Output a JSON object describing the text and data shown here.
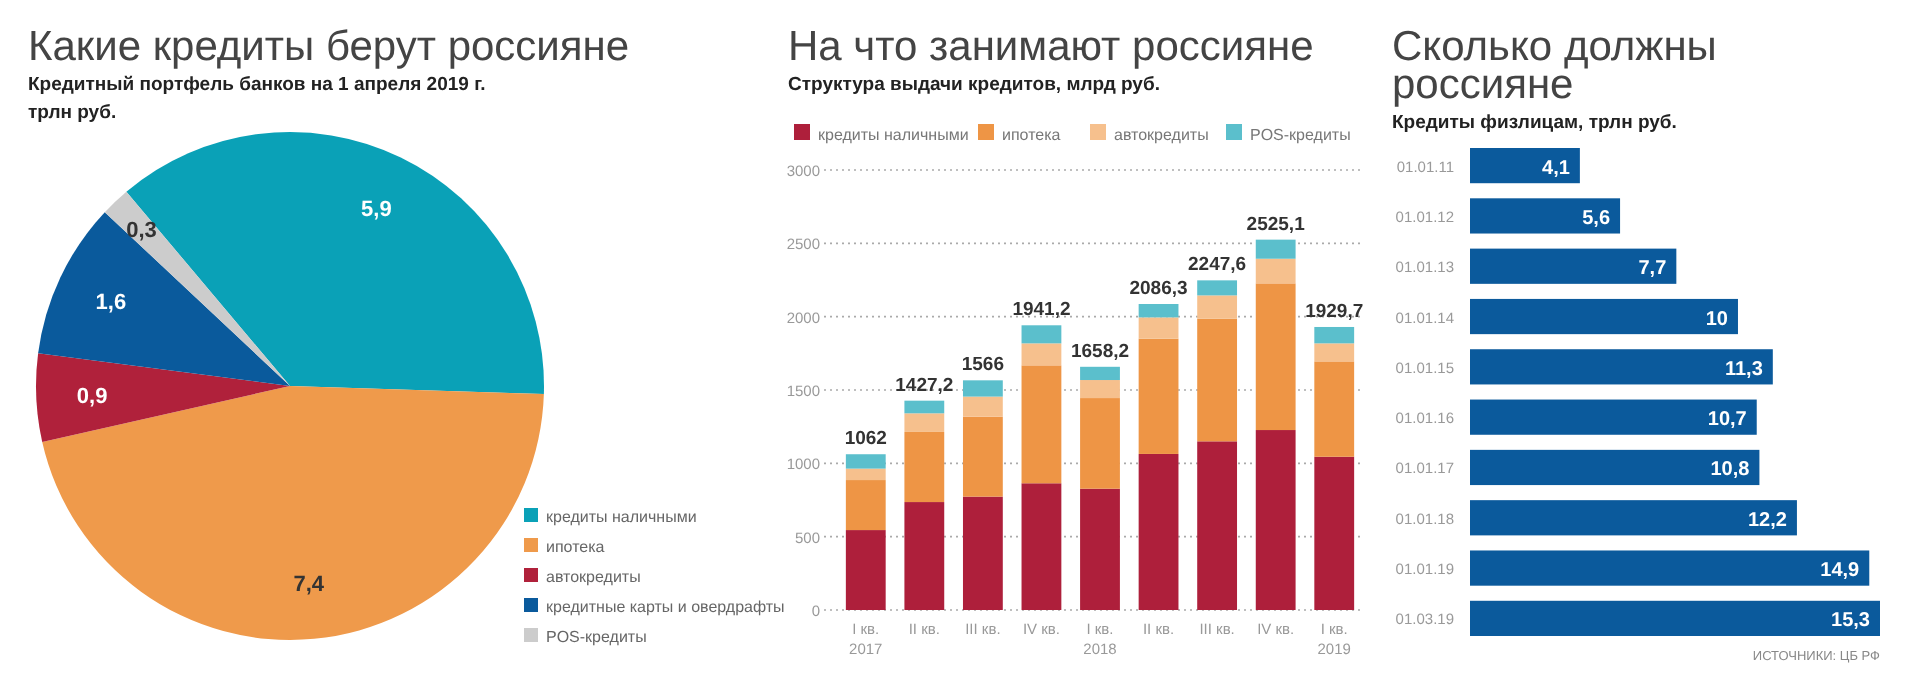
{
  "chart_data": [
    {
      "type": "pie",
      "title": "Какие кредиты берут россияне",
      "subtitle": "Кредитный портфель банков на 1 апреля 2019 г.\nтрлн руб.",
      "categories": [
        "кредиты наличными",
        "ипотека",
        "автокредиты",
        "кредитные карты и овердрафты",
        "POS-кредиты"
      ],
      "values": [
        5.9,
        7.4,
        0.9,
        1.6,
        0.3
      ],
      "value_labels": [
        "5,9",
        "7,4",
        "0,9",
        "1,6",
        "0,3"
      ],
      "colors": [
        "#0aa1b7",
        "#ef9a4b",
        "#b0213b",
        "#0a5a9c",
        "#cccccc"
      ],
      "legend": "bottom right"
    },
    {
      "type": "bar",
      "stacked": true,
      "title": "На что занимают россияне",
      "subtitle": "Структура выдачи кредитов, млрд руб.",
      "categories": [
        "I кв. 2017",
        "II кв.",
        "III кв.",
        "IV кв.",
        "I кв. 2018",
        "II кв.",
        "III кв.",
        "IV кв.",
        "I кв. 2019"
      ],
      "series": [
        {
          "name": "кредиты наличными",
          "color": "#ae1f3b",
          "values": [
            545,
            736,
            773,
            864,
            827,
            1064,
            1150,
            1227,
            1045
          ]
        },
        {
          "name": "ипотека",
          "color": "#ee9545",
          "values": [
            341,
            478,
            545,
            804,
            618,
            786,
            836,
            1000,
            650
          ]
        },
        {
          "name": "автокредиты",
          "color": "#f6c08d",
          "values": [
            78,
            127,
            137,
            150,
            123,
            145,
            159,
            168,
            123
          ]
        },
        {
          "name": "POS-кредиты",
          "color": "#5bbfcc",
          "values": [
            98,
            86.2,
            111,
            123.2,
            90.2,
            91.3,
            102.6,
            130.1,
            111.7
          ]
        }
      ],
      "totals": [
        "1062",
        "1427,2",
        "1566",
        "1941,2",
        "1658,2",
        "2086,3",
        "2247,6",
        "2525,1",
        "1929,7"
      ],
      "ylim": [
        0,
        3000
      ],
      "yticks": [
        0,
        500,
        1000,
        1500,
        2000,
        2500,
        3000
      ],
      "grid": "y",
      "legend": "top"
    },
    {
      "type": "bar",
      "orientation": "horizontal",
      "title": "Сколько должны\nроссияне",
      "subtitle": "Кредиты физлицам, трлн руб.",
      "categories": [
        "01.01.11",
        "01.01.12",
        "01.01.13",
        "01.01.14",
        "01.01.15",
        "01.01.16",
        "01.01.17",
        "01.01.18",
        "01.01.19",
        "01.03.19"
      ],
      "values": [
        4.1,
        5.6,
        7.7,
        10,
        11.3,
        10.7,
        10.8,
        12.2,
        14.9,
        15.3
      ],
      "value_labels": [
        "4,1",
        "5,6",
        "7,7",
        "10",
        "11,3",
        "10,7",
        "10,8",
        "12,2",
        "14,9",
        "15,3"
      ],
      "color": "#0b5a9c",
      "annotations": [
        "ИСТОЧНИКИ: ЦБ РФ"
      ]
    }
  ]
}
